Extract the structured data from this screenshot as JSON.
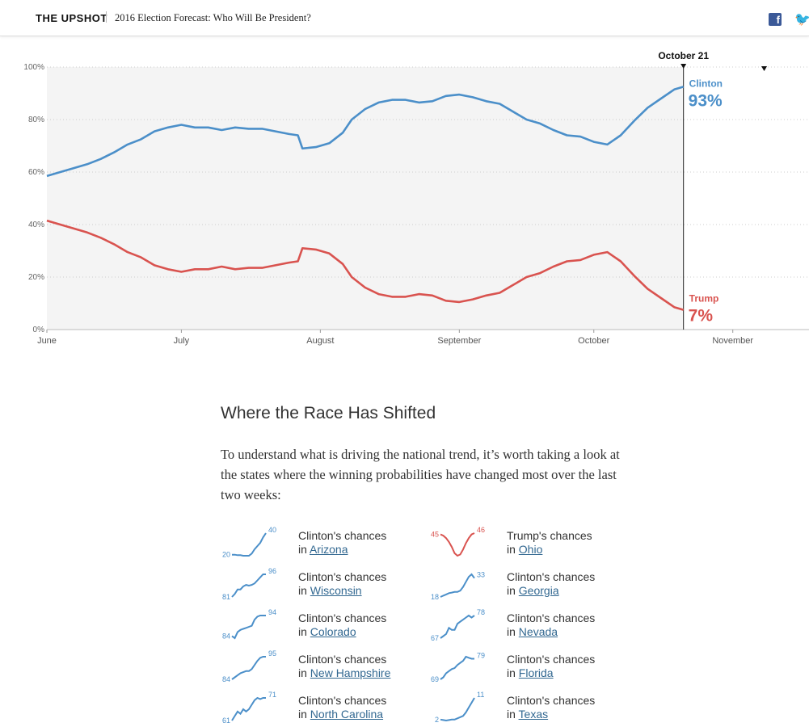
{
  "header": {
    "brand": "THE UPSHOT",
    "title": "2016 Election Forecast: Who Will Be President?",
    "icons": [
      "facebook-icon",
      "twitter-icon"
    ],
    "facebook_glyph": "f",
    "twitter_glyph": "🐦"
  },
  "chart_data": {
    "type": "line",
    "ylim": [
      0,
      100
    ],
    "ytick_labels": [
      "100%",
      "80%",
      "60%",
      "40%",
      "20%",
      "0%"
    ],
    "yticks": [
      100,
      80,
      60,
      40,
      20,
      0
    ],
    "xtick_labels": [
      "June",
      "July",
      "August",
      "September",
      "October",
      "November"
    ],
    "xticks": [
      "2016-06-01",
      "2016-07-01",
      "2016-08-01",
      "2016-09-01",
      "2016-10-01",
      "2016-11-01"
    ],
    "xlim": [
      "2016-06-01",
      "2016-11-18"
    ],
    "current_date": "2016-10-21",
    "current_label": "October 21",
    "election_date": "2016-11-08",
    "colors": {
      "clinton": "#4b8fc9",
      "trump": "#d9534f",
      "shade": "#f4f4f4"
    },
    "series": [
      {
        "name": "Clinton",
        "end_label": "93%",
        "points": [
          [
            "2016-06-01",
            58.5
          ],
          [
            "2016-06-04",
            60.0
          ],
          [
            "2016-06-07",
            61.5
          ],
          [
            "2016-06-10",
            63.0
          ],
          [
            "2016-06-13",
            65.0
          ],
          [
            "2016-06-16",
            67.5
          ],
          [
            "2016-06-19",
            70.5
          ],
          [
            "2016-06-22",
            72.5
          ],
          [
            "2016-06-25",
            75.5
          ],
          [
            "2016-06-28",
            77.0
          ],
          [
            "2016-07-01",
            78.0
          ],
          [
            "2016-07-04",
            77.0
          ],
          [
            "2016-07-07",
            77.0
          ],
          [
            "2016-07-10",
            76.0
          ],
          [
            "2016-07-13",
            77.0
          ],
          [
            "2016-07-16",
            76.5
          ],
          [
            "2016-07-19",
            76.5
          ],
          [
            "2016-07-22",
            75.5
          ],
          [
            "2016-07-25",
            74.5
          ],
          [
            "2016-07-27",
            74.0
          ],
          [
            "2016-07-28",
            69.0
          ],
          [
            "2016-07-31",
            69.5
          ],
          [
            "2016-08-03",
            71.0
          ],
          [
            "2016-08-06",
            75.0
          ],
          [
            "2016-08-08",
            80.0
          ],
          [
            "2016-08-11",
            84.0
          ],
          [
            "2016-08-14",
            86.5
          ],
          [
            "2016-08-17",
            87.5
          ],
          [
            "2016-08-20",
            87.5
          ],
          [
            "2016-08-23",
            86.5
          ],
          [
            "2016-08-26",
            87.0
          ],
          [
            "2016-08-29",
            89.0
          ],
          [
            "2016-09-01",
            89.5
          ],
          [
            "2016-09-04",
            88.5
          ],
          [
            "2016-09-07",
            87.0
          ],
          [
            "2016-09-10",
            86.0
          ],
          [
            "2016-09-13",
            83.0
          ],
          [
            "2016-09-16",
            80.0
          ],
          [
            "2016-09-19",
            78.5
          ],
          [
            "2016-09-22",
            76.0
          ],
          [
            "2016-09-25",
            74.0
          ],
          [
            "2016-09-28",
            73.5
          ],
          [
            "2016-10-01",
            71.5
          ],
          [
            "2016-10-04",
            70.5
          ],
          [
            "2016-10-07",
            74.0
          ],
          [
            "2016-10-10",
            79.5
          ],
          [
            "2016-10-13",
            84.5
          ],
          [
            "2016-10-16",
            88.0
          ],
          [
            "2016-10-19",
            91.5
          ],
          [
            "2016-10-21",
            92.5
          ]
        ]
      },
      {
        "name": "Trump",
        "end_label": "7%",
        "points": [
          [
            "2016-06-01",
            41.5
          ],
          [
            "2016-06-04",
            40.0
          ],
          [
            "2016-06-07",
            38.5
          ],
          [
            "2016-06-10",
            37.0
          ],
          [
            "2016-06-13",
            35.0
          ],
          [
            "2016-06-16",
            32.5
          ],
          [
            "2016-06-19",
            29.5
          ],
          [
            "2016-06-22",
            27.5
          ],
          [
            "2016-06-25",
            24.5
          ],
          [
            "2016-06-28",
            23.0
          ],
          [
            "2016-07-01",
            22.0
          ],
          [
            "2016-07-04",
            23.0
          ],
          [
            "2016-07-07",
            23.0
          ],
          [
            "2016-07-10",
            24.0
          ],
          [
            "2016-07-13",
            23.0
          ],
          [
            "2016-07-16",
            23.5
          ],
          [
            "2016-07-19",
            23.5
          ],
          [
            "2016-07-22",
            24.5
          ],
          [
            "2016-07-25",
            25.5
          ],
          [
            "2016-07-27",
            26.0
          ],
          [
            "2016-07-28",
            31.0
          ],
          [
            "2016-07-31",
            30.5
          ],
          [
            "2016-08-03",
            29.0
          ],
          [
            "2016-08-06",
            25.0
          ],
          [
            "2016-08-08",
            20.0
          ],
          [
            "2016-08-11",
            16.0
          ],
          [
            "2016-08-14",
            13.5
          ],
          [
            "2016-08-17",
            12.5
          ],
          [
            "2016-08-20",
            12.5
          ],
          [
            "2016-08-23",
            13.5
          ],
          [
            "2016-08-26",
            13.0
          ],
          [
            "2016-08-29",
            11.0
          ],
          [
            "2016-09-01",
            10.5
          ],
          [
            "2016-09-04",
            11.5
          ],
          [
            "2016-09-07",
            13.0
          ],
          [
            "2016-09-10",
            14.0
          ],
          [
            "2016-09-13",
            17.0
          ],
          [
            "2016-09-16",
            20.0
          ],
          [
            "2016-09-19",
            21.5
          ],
          [
            "2016-09-22",
            24.0
          ],
          [
            "2016-09-25",
            26.0
          ],
          [
            "2016-09-28",
            26.5
          ],
          [
            "2016-10-01",
            28.5
          ],
          [
            "2016-10-04",
            29.5
          ],
          [
            "2016-10-07",
            26.0
          ],
          [
            "2016-10-10",
            20.5
          ],
          [
            "2016-10-13",
            15.5
          ],
          [
            "2016-10-16",
            12.0
          ],
          [
            "2016-10-19",
            8.5
          ],
          [
            "2016-10-21",
            7.5
          ]
        ]
      }
    ]
  },
  "article": {
    "heading": "Where the Race Has Shifted",
    "paragraph": "To understand what is driving the national trend, it’s worth taking a look at the states where the winning probabilities have changed most over the last two weeks:"
  },
  "states": [
    {
      "label": "Clinton's chances",
      "prefix": "in ",
      "state": "Arizona",
      "start": 20,
      "end": 40,
      "color": "#4b8fc9",
      "values": [
        20,
        20,
        19.5,
        19.5,
        19,
        19,
        19,
        21,
        25,
        28,
        31,
        36,
        40
      ]
    },
    {
      "label": "Trump's chances",
      "prefix": "in ",
      "state": "Ohio",
      "start": 45,
      "end": 46,
      "color": "#d9534f",
      "values": [
        45,
        44,
        42,
        39,
        35,
        30,
        28,
        29,
        33,
        38,
        42,
        45,
        46
      ]
    },
    {
      "label": "Clinton's chances",
      "prefix": "in ",
      "state": "Wisconsin",
      "start": 81,
      "end": 96,
      "color": "#4b8fc9",
      "values": [
        81,
        83,
        86,
        86,
        88,
        89,
        88.5,
        89,
        90,
        92,
        94,
        96,
        96
      ]
    },
    {
      "label": "Clinton's chances",
      "prefix": "in ",
      "state": "Georgia",
      "start": 18,
      "end": 33,
      "color": "#4b8fc9",
      "values": [
        18,
        19,
        20,
        21,
        21.5,
        22,
        22,
        23,
        26,
        30,
        34,
        36,
        33
      ]
    },
    {
      "label": "Clinton's chances",
      "prefix": "in ",
      "state": "Colorado",
      "start": 84,
      "end": 94,
      "color": "#4b8fc9",
      "values": [
        84,
        83,
        86,
        87,
        87.5,
        88,
        88.5,
        89,
        92,
        93.5,
        94,
        94,
        94
      ]
    },
    {
      "label": "Clinton's chances",
      "prefix": "in ",
      "state": "Nevada",
      "start": 67,
      "end": 78,
      "color": "#4b8fc9",
      "values": [
        67,
        68,
        69,
        72,
        71,
        71,
        74,
        75,
        76,
        77,
        78,
        77,
        78
      ]
    },
    {
      "label": "Clinton's chances",
      "prefix": "in ",
      "state": "New Hampshire",
      "start": 84,
      "end": 95,
      "color": "#4b8fc9",
      "values": [
        84,
        85,
        86,
        87,
        87.5,
        88,
        88,
        89,
        91,
        93,
        94.5,
        95,
        95
      ]
    },
    {
      "label": "Clinton's chances",
      "prefix": "in ",
      "state": "Florida",
      "start": 69,
      "end": 79,
      "color": "#4b8fc9",
      "values": [
        69,
        70,
        72,
        73,
        74,
        74.5,
        76,
        77,
        78,
        80,
        79.5,
        79,
        79
      ]
    },
    {
      "label": "Clinton's chances",
      "prefix": "in ",
      "state": "North Carolina",
      "start": 61,
      "end": 71,
      "color": "#4b8fc9",
      "values": [
        61,
        63,
        65,
        64,
        66,
        65,
        66,
        68,
        70,
        71,
        70.5,
        71,
        71
      ]
    },
    {
      "label": "Clinton's chances",
      "prefix": "in ",
      "state": "Texas",
      "start": 2,
      "end": 11,
      "color": "#4b8fc9",
      "values": [
        2,
        1.8,
        1.6,
        1.8,
        2,
        2,
        2.5,
        3,
        3.5,
        5,
        7,
        9,
        11
      ]
    }
  ]
}
